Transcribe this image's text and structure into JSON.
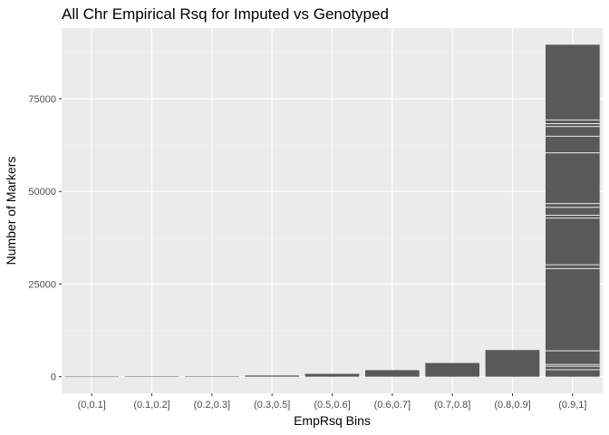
{
  "chart_data": {
    "type": "bar",
    "title": "All Chr Empirical Rsq for Imputed vs Genotyped",
    "xlabel": "EmpRsq Bins",
    "ylabel": "Number of Markers",
    "categories": [
      "(0,0.1]",
      "(0.1,0.2]",
      "(0.2,0.3]",
      "(0.3,0.5]",
      "(0.5,0.6]",
      "(0.6,0.7]",
      "(0.7,0.8]",
      "(0.8,0.9]",
      "(0.9,1]"
    ],
    "values": [
      30,
      50,
      90,
      330,
      780,
      1780,
      3700,
      7200,
      89600
    ],
    "yticks": [
      0,
      25000,
      50000,
      75000
    ],
    "ytick_labels": [
      "0",
      "25000",
      "50000",
      "75000"
    ],
    "ylim": [
      -4480,
      94080
    ],
    "segment_boundaries": [
      [],
      [],
      [],
      [],
      [],
      [],
      [],
      [],
      [
        1900,
        2800,
        3300,
        7000,
        29200,
        30200,
        42800,
        43600,
        45700,
        46700,
        60400,
        64900,
        67500,
        68300,
        69300
      ]
    ],
    "grid": true,
    "legend": "none",
    "colors": {
      "panel": "#ebebeb",
      "grid_major": "#ffffff",
      "grid_minor": "#f4f4f4",
      "bar": "#595959",
      "segment_line": "#ffffff",
      "tick": "#333333"
    }
  }
}
